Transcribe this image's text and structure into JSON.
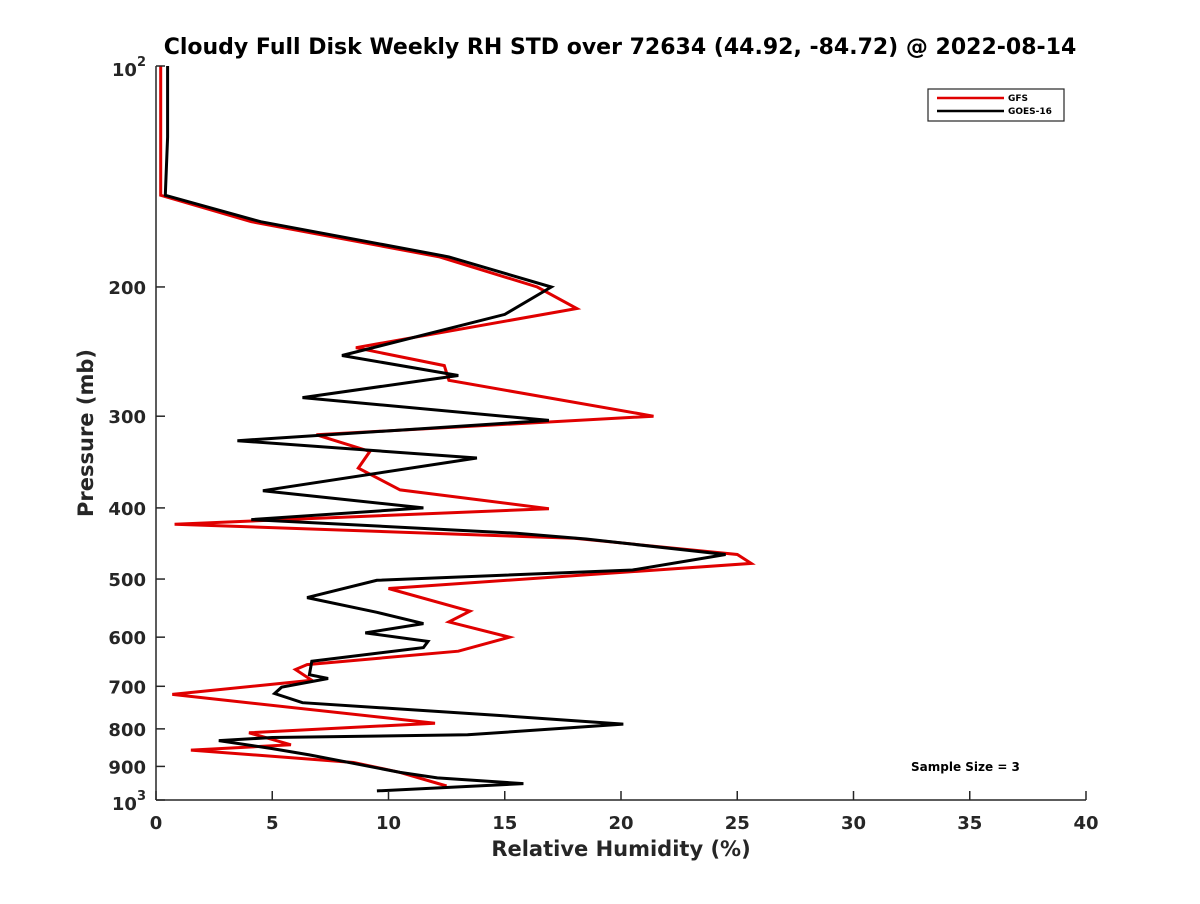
{
  "chart_data": {
    "type": "line",
    "title": "Cloudy Full Disk Weekly RH STD over 72634 (44.92, -84.72) @ 2022-08-14",
    "xlabel": "Relative Humidity (%)",
    "ylabel": "Pressure (mb)",
    "xlim": [
      0,
      40
    ],
    "ylim": [
      100,
      1000
    ],
    "yscale": "log",
    "y_reversed": true,
    "grid": false,
    "legend_position": "top-right",
    "x_ticks": [
      0,
      5,
      10,
      15,
      20,
      25,
      30,
      35,
      40
    ],
    "y_ticks": [
      {
        "value": 100,
        "base": "10",
        "exp": "2"
      },
      {
        "value": 200,
        "label": "200"
      },
      {
        "value": 300,
        "label": "300"
      },
      {
        "value": 400,
        "label": "400"
      },
      {
        "value": 500,
        "label": "500"
      },
      {
        "value": 600,
        "label": "600"
      },
      {
        "value": 700,
        "label": "700"
      },
      {
        "value": 800,
        "label": "800"
      },
      {
        "value": 900,
        "label": "900"
      },
      {
        "value": 1000,
        "base": "10",
        "exp": "3"
      }
    ],
    "annotation": "Sample Size = 3",
    "series": [
      {
        "name": "GFS",
        "color": "#e00000",
        "points": [
          [
            0.2,
            100
          ],
          [
            0.2,
            125
          ],
          [
            0.2,
            150
          ],
          [
            4.1,
            163
          ],
          [
            12.2,
            182
          ],
          [
            16.4,
            200
          ],
          [
            18.1,
            214
          ],
          [
            8.6,
            242
          ],
          [
            12.4,
            256
          ],
          [
            12.6,
            268
          ],
          [
            21.4,
            300
          ],
          [
            6.9,
            318
          ],
          [
            9.2,
            335
          ],
          [
            8.7,
            353
          ],
          [
            10.5,
            378
          ],
          [
            16.9,
            401
          ],
          [
            0.8,
            421
          ],
          [
            18.0,
            440
          ],
          [
            25.0,
            463
          ],
          [
            25.6,
            476
          ],
          [
            10.0,
            515
          ],
          [
            13.5,
            553
          ],
          [
            12.6,
            572
          ],
          [
            15.2,
            600
          ],
          [
            13.0,
            627
          ],
          [
            6.5,
            654
          ],
          [
            6.0,
            664
          ],
          [
            6.7,
            687
          ],
          [
            0.7,
            718
          ],
          [
            12.0,
            786
          ],
          [
            4.0,
            810
          ],
          [
            5.8,
            841
          ],
          [
            1.5,
            855
          ],
          [
            8.5,
            889
          ],
          [
            10.5,
            917
          ],
          [
            12.5,
            957
          ]
        ]
      },
      {
        "name": "GOES-16",
        "color": "#000000",
        "points": [
          [
            0.5,
            100
          ],
          [
            0.5,
            125
          ],
          [
            0.4,
            150
          ],
          [
            4.5,
            163
          ],
          [
            12.6,
            182
          ],
          [
            17.0,
            200
          ],
          [
            15.0,
            218
          ],
          [
            8.0,
            248
          ],
          [
            13.0,
            264
          ],
          [
            6.3,
            283
          ],
          [
            16.9,
            304
          ],
          [
            3.5,
            324
          ],
          [
            13.8,
            342
          ],
          [
            4.6,
            379
          ],
          [
            11.5,
            400
          ],
          [
            4.1,
            415
          ],
          [
            15.5,
            433
          ],
          [
            18.5,
            441
          ],
          [
            24.5,
            463
          ],
          [
            20.5,
            486
          ],
          [
            9.5,
            502
          ],
          [
            6.5,
            530
          ],
          [
            9.5,
            555
          ],
          [
            11.5,
            575
          ],
          [
            9.0,
            592
          ],
          [
            11.7,
            608
          ],
          [
            11.5,
            620
          ],
          [
            6.7,
            647
          ],
          [
            6.6,
            675
          ],
          [
            7.4,
            683
          ],
          [
            5.4,
            702
          ],
          [
            5.1,
            716
          ],
          [
            6.3,
            737
          ],
          [
            14.7,
            767
          ],
          [
            20.1,
            788
          ],
          [
            13.4,
            815
          ],
          [
            5.0,
            822
          ],
          [
            2.7,
            830
          ],
          [
            5.0,
            851
          ],
          [
            6.6,
            868
          ],
          [
            7.9,
            884
          ],
          [
            10.5,
            917
          ],
          [
            12.1,
            933
          ],
          [
            15.8,
            950
          ],
          [
            9.5,
            972
          ]
        ]
      }
    ]
  }
}
